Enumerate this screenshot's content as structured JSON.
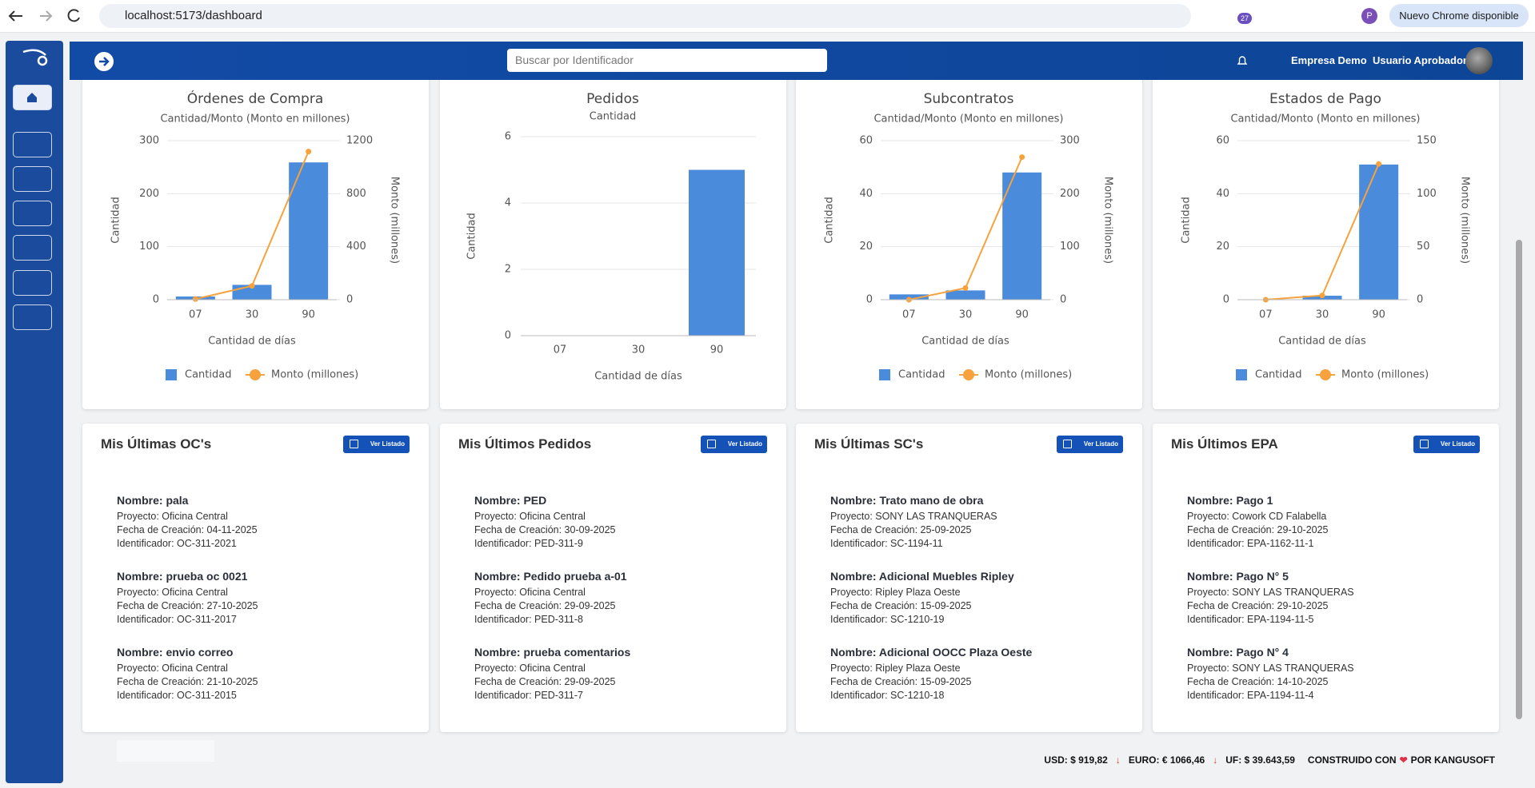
{
  "browser": {
    "url": "localhost:5173/dashboard",
    "extension_badge": "27",
    "profile": "P",
    "update_button": "Nuevo Chrome disponible"
  },
  "header": {
    "search_placeholder": "Buscar por Identificador",
    "company": "Empresa Demo",
    "user": "Usuario Aprobador"
  },
  "chart_data": [
    {
      "type": "combo",
      "title": "Órdenes de Compra",
      "subtitle": "Cantidad/Monto (Monto en millones)",
      "xlabel": "Cantidad de días",
      "ylabel": "Cantidad",
      "y2label": "Monto (millones)",
      "categories": [
        "07",
        "30",
        "90"
      ],
      "series": [
        {
          "name": "Cantidad",
          "color": "#4a8bdb",
          "values": [
            6,
            28,
            259
          ]
        },
        {
          "name": "Monto (millones)",
          "color": "#f7a23c",
          "axis": "y2",
          "values": [
            5,
            104,
            1118
          ]
        }
      ],
      "ylim": [
        0,
        300
      ],
      "yticks": [
        0,
        100,
        200,
        300
      ],
      "y2lim": [
        0,
        1200
      ],
      "y2ticks": [
        0,
        400,
        800,
        1200
      ],
      "grid": true,
      "legend": "bottom"
    },
    {
      "type": "bar",
      "title": "Pedidos",
      "subtitle": "Cantidad",
      "xlabel": "Cantidad de días",
      "ylabel": "Cantidad",
      "categories": [
        "07",
        "30",
        "90"
      ],
      "values": [
        0,
        0,
        5
      ],
      "color": "#4a8bdb",
      "ylim": [
        0,
        6
      ],
      "yticks": [
        0,
        2,
        4,
        6
      ],
      "grid": true
    },
    {
      "type": "combo",
      "title": "Subcontratos",
      "subtitle": "Cantidad/Monto (Monto en millones)",
      "xlabel": "Cantidad de días",
      "ylabel": "Cantidad",
      "y2label": "Monto (millones)",
      "categories": [
        "07",
        "30",
        "90"
      ],
      "series": [
        {
          "name": "Cantidad",
          "color": "#4a8bdb",
          "values": [
            2,
            3.5,
            48
          ]
        },
        {
          "name": "Monto (millones)",
          "color": "#f7a23c",
          "axis": "y2",
          "values": [
            0,
            22,
            269
          ]
        }
      ],
      "ylim": [
        0,
        60
      ],
      "yticks": [
        0,
        20,
        40,
        60
      ],
      "y2lim": [
        0,
        300
      ],
      "y2ticks": [
        0,
        100,
        200,
        300
      ],
      "grid": true,
      "legend": "bottom"
    },
    {
      "type": "combo",
      "title": "Estados de Pago",
      "subtitle": "Cantidad/Monto (Monto en millones)",
      "xlabel": "Cantidad de días",
      "ylabel": "Cantidad",
      "y2label": "Monto (millones)",
      "categories": [
        "07",
        "30",
        "90"
      ],
      "series": [
        {
          "name": "Cantidad",
          "color": "#4a8bdb",
          "values": [
            0,
            1.5,
            51
          ]
        },
        {
          "name": "Monto (millones)",
          "color": "#f7a23c",
          "axis": "y2",
          "values": [
            0,
            4,
            128
          ]
        }
      ],
      "ylim": [
        0,
        60
      ],
      "yticks": [
        0,
        20,
        40,
        60
      ],
      "y2lim": [
        0,
        150
      ],
      "y2ticks": [
        0,
        50,
        100,
        150
      ],
      "grid": true,
      "legend": "bottom"
    }
  ],
  "lists": [
    {
      "title": "Mis Últimas OC's",
      "button": "Ver Listado",
      "items": [
        {
          "name": "Nombre: pala",
          "project": "Proyecto: Oficina Central",
          "date": "Fecha de Creación: 04-11-2025",
          "id": "Identificador: OC-311-2021"
        },
        {
          "name": "Nombre: prueba oc 0021",
          "project": "Proyecto: Oficina Central",
          "date": "Fecha de Creación: 27-10-2025",
          "id": "Identificador: OC-311-2017"
        },
        {
          "name": "Nombre: envio correo",
          "project": "Proyecto: Oficina Central",
          "date": "Fecha de Creación: 21-10-2025",
          "id": "Identificador: OC-311-2015"
        }
      ]
    },
    {
      "title": "Mis Últimos Pedidos",
      "button": "Ver Listado",
      "items": [
        {
          "name": "Nombre: PED",
          "project": "Proyecto: Oficina Central",
          "date": "Fecha de Creación: 30-09-2025",
          "id": "Identificador: PED-311-9"
        },
        {
          "name": "Nombre: Pedido prueba a-01",
          "project": "Proyecto: Oficina Central",
          "date": "Fecha de Creación: 29-09-2025",
          "id": "Identificador: PED-311-8"
        },
        {
          "name": "Nombre: prueba comentarios",
          "project": "Proyecto: Oficina Central",
          "date": "Fecha de Creación: 29-09-2025",
          "id": "Identificador: PED-311-7"
        }
      ]
    },
    {
      "title": "Mis Últimas SC's",
      "button": "Ver Listado",
      "items": [
        {
          "name": "Nombre: Trato mano de obra",
          "project": "Proyecto: SONY LAS TRANQUERAS",
          "date": "Fecha de Creación: 25-09-2025",
          "id": "Identificador: SC-1194-11"
        },
        {
          "name": "Nombre: Adicional Muebles Ripley",
          "project": "Proyecto: Ripley Plaza Oeste",
          "date": "Fecha de Creación: 15-09-2025",
          "id": "Identificador: SC-1210-19"
        },
        {
          "name": "Nombre: Adicional OOCC Plaza Oeste",
          "project": "Proyecto: Ripley Plaza Oeste",
          "date": "Fecha de Creación: 15-09-2025",
          "id": "Identificador: SC-1210-18"
        }
      ]
    },
    {
      "title": "Mis Últimos EPA",
      "button": "Ver Listado",
      "items": [
        {
          "name": "Nombre: Pago 1",
          "project": "Proyecto: Cowork CD Falabella",
          "date": "Fecha de Creación: 29-10-2025",
          "id": "Identificador: EPA-1162-11-1"
        },
        {
          "name": "Nombre: Pago N° 5",
          "project": "Proyecto: SONY LAS TRANQUERAS",
          "date": "Fecha de Creación: 29-10-2025",
          "id": "Identificador: EPA-1194-11-5"
        },
        {
          "name": "Nombre: Pago N° 4",
          "project": "Proyecto: SONY LAS TRANQUERAS",
          "date": "Fecha de Creación: 14-10-2025",
          "id": "Identificador: EPA-1194-11-4"
        }
      ]
    }
  ],
  "footer": {
    "usd": "USD: $ 919,82",
    "euro": "EURO: € 1066,46",
    "uf": "UF: $ 39.643,59",
    "built_with": "CONSTRUIDO CON",
    "by": "POR KANGUSOFT"
  }
}
